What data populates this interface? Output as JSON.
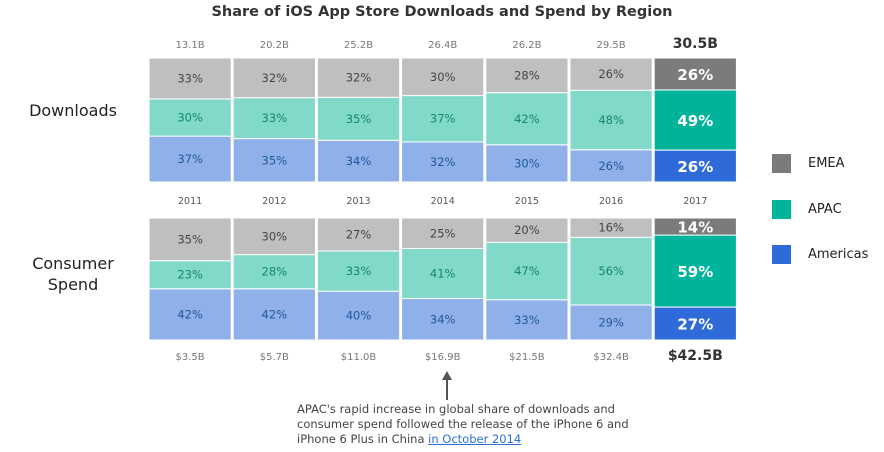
{
  "chart_data": [
    {
      "type": "bar",
      "stacked": "percent",
      "title": "Share of iOS App Store Downloads and Spend by Region",
      "row_label": "Downloads",
      "categories": [
        "2011",
        "2012",
        "2013",
        "2014",
        "2015",
        "2016",
        "2017"
      ],
      "totals": [
        "13.1B",
        "20.2B",
        "25.2B",
        "26.4B",
        "26.2B",
        "29.5B",
        "30.5B"
      ],
      "series": [
        {
          "name": "Americas",
          "values": [
            37,
            35,
            34,
            32,
            30,
            26,
            26
          ]
        },
        {
          "name": "APAC",
          "values": [
            30,
            33,
            35,
            37,
            42,
            48,
            49
          ]
        },
        {
          "name": "EMEA",
          "values": [
            33,
            32,
            32,
            30,
            28,
            26,
            26
          ]
        }
      ]
    },
    {
      "type": "bar",
      "stacked": "percent",
      "row_label": "Consumer Spend",
      "row_label_lines": [
        "Consumer",
        "Spend"
      ],
      "categories": [
        "2011",
        "2012",
        "2013",
        "2014",
        "2015",
        "2016",
        "2017"
      ],
      "totals": [
        "$3.5B",
        "$5.7B",
        "$11.0B",
        "$16.9B",
        "$21.5B",
        "$32.4B",
        "$42.5B"
      ],
      "series": [
        {
          "name": "Americas",
          "values": [
            42,
            42,
            40,
            34,
            33,
            29,
            27
          ]
        },
        {
          "name": "APAC",
          "values": [
            23,
            28,
            33,
            41,
            47,
            56,
            59
          ]
        },
        {
          "name": "EMEA",
          "values": [
            35,
            30,
            27,
            25,
            20,
            16,
            14
          ]
        }
      ]
    }
  ],
  "title": "Share of iOS App Store Downloads and Spend by Region",
  "legend": [
    {
      "name": "EMEA",
      "color": "#7b7b7b"
    },
    {
      "name": "APAC",
      "color": "#00b39b"
    },
    {
      "name": "Americas",
      "color": "#2e6bd8"
    }
  ],
  "colors": {
    "Americas": {
      "light": "#8fb0e8",
      "dark": "#2e6bd8",
      "text": "#1f5a9c"
    },
    "APAC": {
      "light": "#80d9c9",
      "dark": "#00b39b",
      "text": "#16876c"
    },
    "EMEA": {
      "light": "#bfbfbf",
      "dark": "#7b7b7b",
      "text": "#454545"
    }
  },
  "annotation": {
    "text": "APAC's rapid increase in global share of downloads and consumer spend followed the release of the iPhone 6 and iPhone 6 Plus in China ",
    "link": "in October 2014"
  }
}
